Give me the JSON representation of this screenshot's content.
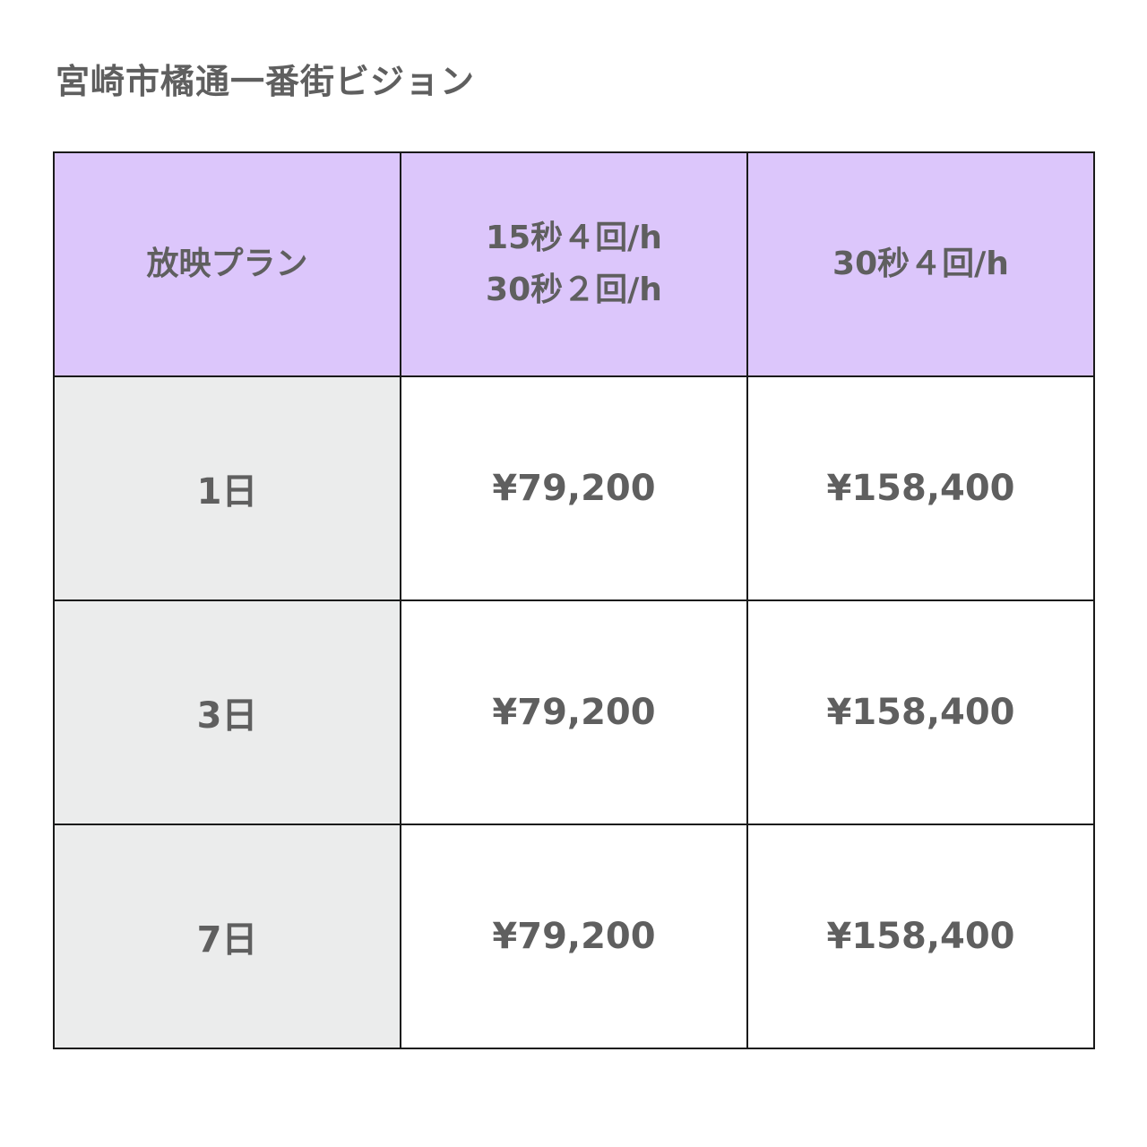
{
  "title": "宮崎市橘通一番街ビジョン",
  "table": {
    "headers": {
      "plan": "放映プラン",
      "col1_line1": "15秒４回/h",
      "col1_line2": "30秒２回/h",
      "col2": "30秒４回/h"
    },
    "rows": [
      {
        "label": "1日",
        "col1": "¥79,200",
        "col2": "¥158,400"
      },
      {
        "label": "3日",
        "col1": "¥79,200",
        "col2": "¥158,400"
      },
      {
        "label": "7日",
        "col1": "¥79,200",
        "col2": "¥158,400"
      }
    ]
  },
  "colors": {
    "header_bg": "#dcc6fb",
    "label_bg": "#ebecec",
    "text": "#5f5f5f",
    "border": "#1a1a1a"
  }
}
